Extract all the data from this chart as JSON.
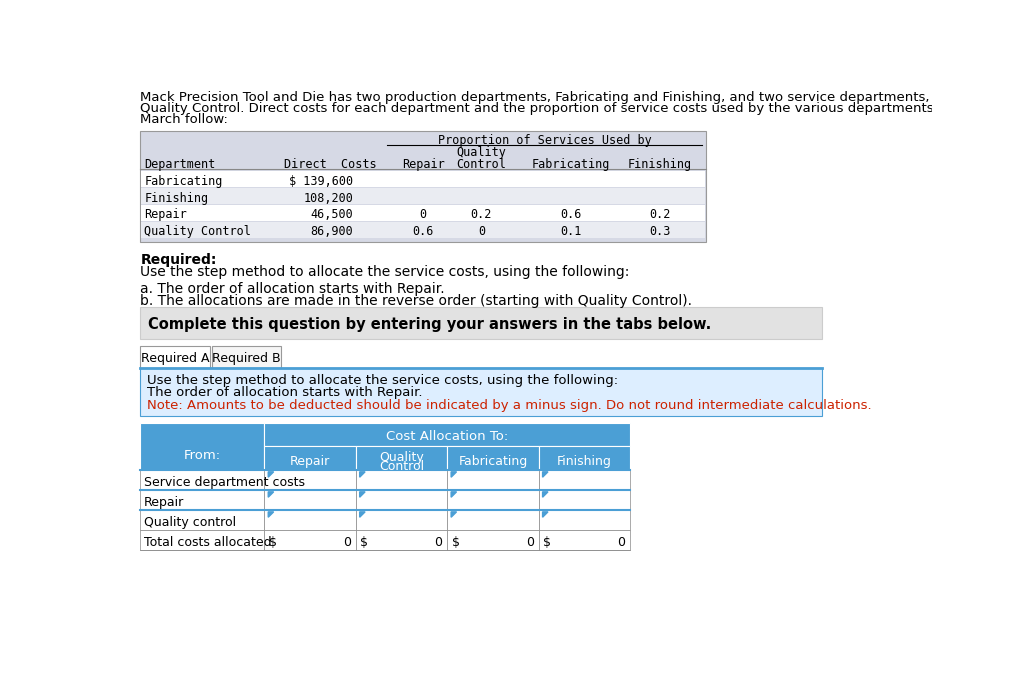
{
  "intro_text_lines": [
    "Mack Precision Tool and Die has two production departments, Fabricating and Finishing, and two service departments, Repair and",
    "Quality Control. Direct costs for each department and the proportion of service costs used by the various departments for the month of",
    "March follow:"
  ],
  "table1_rows": [
    [
      "Fabricating",
      "$ 139,600",
      "",
      "",
      "",
      ""
    ],
    [
      "Finishing",
      "108,200",
      "",
      "",
      "",
      ""
    ],
    [
      "Repair",
      "46,500",
      "0",
      "0.2",
      "0.6",
      "0.2"
    ],
    [
      "Quality Control",
      "86,900",
      "0.6",
      "0",
      "0.1",
      "0.3"
    ]
  ],
  "required_bold": "Required:",
  "required_line2": "Use the step method to allocate the service costs, using the following:",
  "point_a": "a. The order of allocation starts with Repair.",
  "point_b": "b. The allocations are made in the reverse order (starting with Quality Control).",
  "complete_box_text": "Complete this question by entering your answers in the tabs below.",
  "tab1_label": "Required A",
  "tab2_label": "Required B",
  "inst_line1": "Use the step method to allocate the service costs, using the following:",
  "inst_line2": "The order of allocation starts with Repair.",
  "inst_note": "Note: Amounts to be deducted should be indicated by a minus sign. Do not round intermediate calculations.",
  "t2_from": "From:",
  "t2_header": "Cost Allocation To:",
  "t2_col_headers_line1": [
    "Repair",
    "Quality",
    "Fabricating",
    "Finishing"
  ],
  "t2_col_headers_line2": [
    "",
    "Control",
    "",
    ""
  ],
  "t2_row_labels": [
    "Service department costs",
    "Repair",
    "Quality control",
    "Total costs allocated"
  ],
  "bg_white": "#ffffff",
  "table1_bg": "#d6d9e5",
  "table1_row_white": "#ffffff",
  "table1_row_alt": "#eaecf2",
  "complete_box_bg": "#e2e2e2",
  "inst_box_bg": "#ddeeff",
  "t2_header_bg": "#4b9fd5",
  "t2_border": "#4b9fd5",
  "note_color": "#cc2200"
}
